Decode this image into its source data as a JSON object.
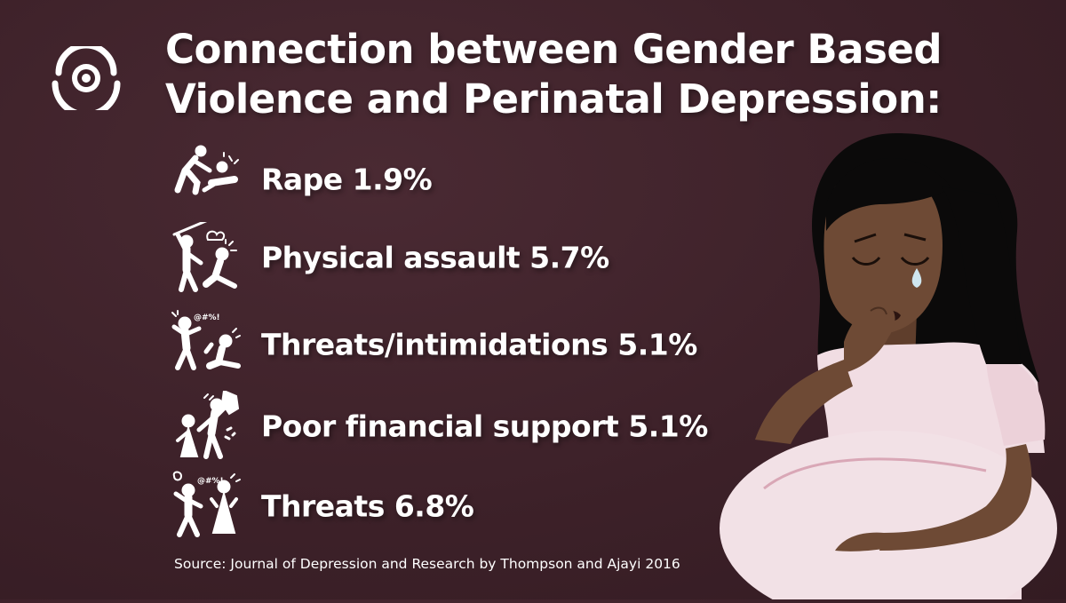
{
  "logo": {
    "icon": "eye-logo-icon"
  },
  "title": {
    "line1": "Connection between Gender Based",
    "line2": "Violence and Perinatal Depression:"
  },
  "items": [
    {
      "label": "Rape 1.9%",
      "icon": "assault-on-ground-icon"
    },
    {
      "label": "Physical assault 5.7%",
      "icon": "stick-beating-icon"
    },
    {
      "label": "Threats/intimidations 5.1%",
      "icon": "angry-shouting-icon"
    },
    {
      "label": "Poor financial support 5.1%",
      "icon": "money-bag-pushing-icon"
    },
    {
      "label": "Threats 6.8%",
      "icon": "yelling-at-woman-icon"
    }
  ],
  "source": "Source: Journal of Depression and Research by Thompson and Ajayi 2016",
  "illustration": {
    "icon": "crying-pregnant-woman-illustration"
  },
  "colors": {
    "background": "#3d2129",
    "text": "#ffffff",
    "skin": "#6e4a35",
    "hair": "#0b0a0a",
    "dress": "#f1dde3"
  }
}
